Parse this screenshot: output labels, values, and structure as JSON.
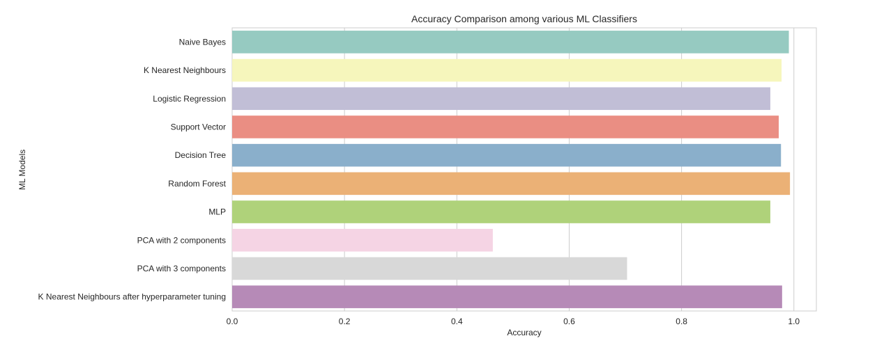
{
  "chart_data": {
    "type": "bar",
    "orientation": "horizontal",
    "title": "Accuracy Comparison among various ML Classifiers",
    "xlabel": "Accuracy",
    "ylabel": "ML Models",
    "xlim": [
      0.0,
      1.04
    ],
    "xticks": [
      "0.0",
      "0.2",
      "0.4",
      "0.6",
      "0.8",
      "1.0"
    ],
    "grid": true,
    "categories": [
      "Naive Bayes",
      "K Nearest Neighbours",
      "Logistic Regression",
      "Support Vector",
      "Decision Tree",
      "Random Forest",
      "MLP",
      "PCA with 2 components",
      "PCA with 3 components",
      "K Nearest Neighbours after hyperparameter tuning"
    ],
    "values": [
      0.991,
      0.978,
      0.958,
      0.973,
      0.977,
      0.993,
      0.958,
      0.464,
      0.703,
      0.979
    ],
    "colors": [
      "#96cac1",
      "#f6f6bc",
      "#c1bed6",
      "#ea8e83",
      "#8aafcb",
      "#ebb176",
      "#afd27a",
      "#f5d4e4",
      "#d8d8d8",
      "#b68ab7"
    ]
  }
}
